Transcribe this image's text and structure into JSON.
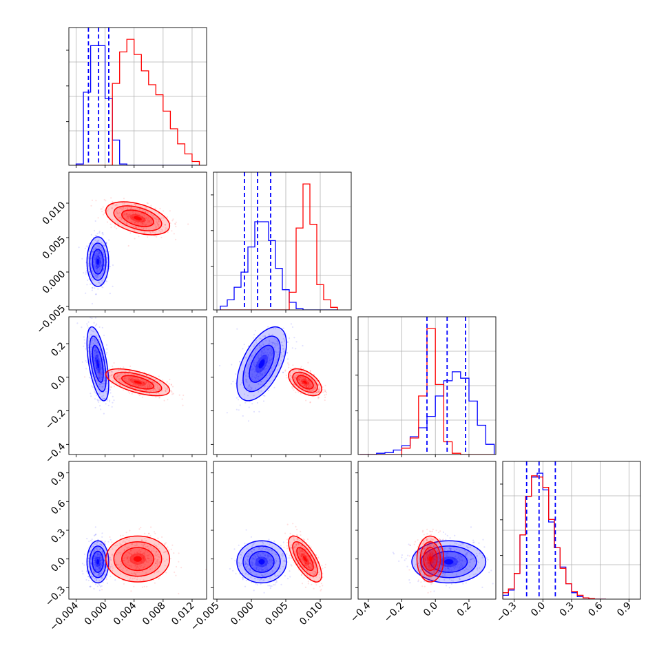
{
  "chart_data": {
    "type": "corner",
    "colors": {
      "series_a": "#0000ff",
      "series_b": "#ff0000"
    },
    "series": [
      {
        "name": "blue",
        "color": "#0000ff",
        "mean": [
          -0.001,
          0.0015,
          0.08,
          -0.03
        ],
        "sd": [
          0.00075,
          0.0018,
          0.11,
          0.11
        ],
        "rot": [
          0,
          -0.55,
          0.55,
          0,
          0,
          0
        ]
      },
      {
        "name": "red",
        "color": "#ff0000",
        "mean": [
          0.0045,
          0.0078,
          -0.03,
          0.0
        ],
        "sd": [
          0.0022,
          0.0012,
          0.04,
          0.12
        ],
        "rot": [
          -0.45,
          -0.6,
          -0.5,
          0,
          -0.7,
          0
        ]
      }
    ],
    "params": [
      {
        "range": [
          -0.005,
          0.014
        ],
        "ticks": [
          "−0.004",
          "0.000",
          "0.004",
          "0.008",
          "0.012"
        ],
        "tick_values": [
          -0.004,
          0.0,
          0.004,
          0.008,
          0.012
        ]
      },
      {
        "range": [
          -0.0055,
          0.0145
        ],
        "ticks": [
          "−0.005",
          "0.000",
          "0.005",
          "0.010"
        ],
        "tick_values": [
          -0.005,
          0.0,
          0.005,
          0.01
        ]
      },
      {
        "range": [
          -0.46,
          0.36
        ],
        "ticks": [
          "−0.4",
          "−0.2",
          "0.0",
          "0.2"
        ],
        "tick_values": [
          -0.4,
          -0.2,
          0.0,
          0.2
        ]
      },
      {
        "range": [
          -0.42,
          1.02
        ],
        "ticks": [
          "−0.3",
          "0.0",
          "0.3",
          "0.6",
          "0.9"
        ],
        "tick_values": [
          -0.3,
          0.0,
          0.3,
          0.6,
          0.9
        ]
      }
    ],
    "quantile_lines": [
      [
        -0.0023,
        -0.0009,
        0.0005
      ],
      [
        -0.001,
        0.0009,
        0.0028
      ],
      [
        -0.05,
        0.07,
        0.18
      ],
      [
        -0.17,
        -0.04,
        0.13
      ]
    ],
    "histograms": [
      {
        "edges": [
          -0.004,
          -0.003,
          -0.002,
          -0.001,
          0.0,
          0.001,
          0.002,
          0.003,
          0.004,
          0.005,
          0.006,
          0.007,
          0.008,
          0.009,
          0.01,
          0.011,
          0.012,
          0.013
        ],
        "blue": [
          0.01,
          0.58,
          0.95,
          0.95,
          0.53,
          0.2,
          0.01,
          0,
          0,
          0,
          0,
          0,
          0,
          0,
          0,
          0,
          0
        ],
        "red": [
          0,
          0,
          0,
          0,
          0,
          0.65,
          0.9,
          1.0,
          0.88,
          0.75,
          0.64,
          0.56,
          0.43,
          0.29,
          0.17,
          0.09,
          0.03
        ]
      },
      {
        "edges": [
          -0.0045,
          -0.0035,
          -0.0025,
          -0.0015,
          -0.0005,
          0.0005,
          0.0015,
          0.0025,
          0.0035,
          0.0045,
          0.0055,
          0.0065,
          0.0075,
          0.0085,
          0.0095,
          0.0105,
          0.0115,
          0.0125
        ],
        "blue": [
          0.03,
          0.08,
          0.18,
          0.3,
          0.5,
          0.7,
          0.7,
          0.55,
          0.33,
          0.16,
          0.06,
          0.01,
          0,
          0,
          0,
          0,
          0
        ],
        "red": [
          0,
          0,
          0,
          0,
          0,
          0,
          0,
          0,
          0,
          0,
          0.14,
          0.65,
          1.0,
          0.68,
          0.2,
          0.08,
          0.02
        ]
      },
      {
        "edges": [
          -0.45,
          -0.4,
          -0.35,
          -0.3,
          -0.25,
          -0.2,
          -0.15,
          -0.1,
          -0.05,
          0.0,
          0.05,
          0.1,
          0.15,
          0.2,
          0.25,
          0.3,
          0.35
        ],
        "blue": [
          0,
          0,
          0.01,
          0.015,
          0.035,
          0.07,
          0.14,
          0.21,
          0.3,
          0.46,
          0.58,
          0.65,
          0.6,
          0.42,
          0.23,
          0.08
        ],
        "red": [
          0,
          0,
          0,
          0,
          0,
          0.05,
          0.13,
          0.46,
          0.99,
          0.55,
          0.1,
          0.01,
          0,
          0,
          0,
          0
        ]
      },
      {
        "edges": [
          -0.42,
          -0.36,
          -0.3,
          -0.24,
          -0.18,
          -0.12,
          -0.06,
          0.0,
          0.06,
          0.12,
          0.18,
          0.24,
          0.3,
          0.36,
          0.42,
          0.48,
          0.54,
          0.6,
          0.66
        ],
        "blue": [
          0.03,
          0.07,
          0.2,
          0.5,
          0.8,
          0.95,
          0.98,
          0.85,
          0.6,
          0.4,
          0.25,
          0.12,
          0.05,
          0.02,
          0.01,
          0,
          0,
          0
        ],
        "red": [
          0.05,
          0.08,
          0.2,
          0.5,
          0.8,
          0.96,
          0.95,
          0.87,
          0.62,
          0.4,
          0.24,
          0.12,
          0.06,
          0.03,
          0.01,
          0.005,
          0,
          0
        ]
      }
    ],
    "contour_levels_sigma": [
      0.5,
      1.0,
      1.5,
      2.0
    ]
  }
}
